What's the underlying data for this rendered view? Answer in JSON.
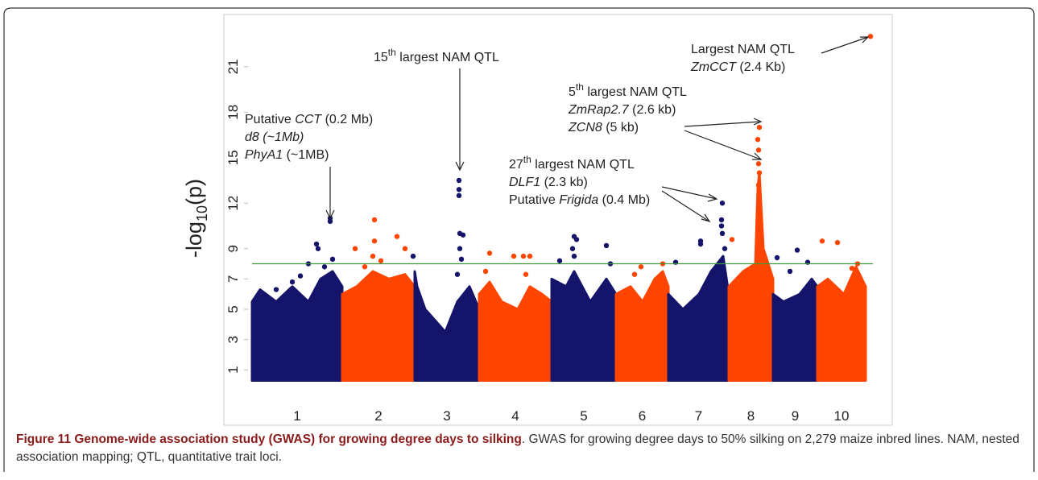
{
  "chart_data": {
    "type": "manhattan",
    "y_label_parts": [
      "-log",
      "10",
      "(p)"
    ],
    "xlim": [
      0,
      771
    ],
    "ylim": [
      -0.1,
      23.7
    ],
    "yticks": [
      1,
      3,
      5,
      7,
      9,
      12,
      15,
      18,
      21
    ],
    "threshold": 8,
    "threshold_color": "#3a9a3a",
    "mass_bottom": 0.3,
    "series": [
      {
        "name": "1",
        "color": "#14146b",
        "mass_x": [
          0,
          10,
          30,
          50,
          70,
          85,
          100,
          112
        ],
        "mass_top": [
          5.5,
          6.3,
          5.5,
          6.5,
          5.5,
          7,
          7.5,
          6.5
        ],
        "x": [
          80,
          82,
          70,
          50,
          97,
          97,
          100,
          90,
          60,
          30
        ],
        "values": [
          9.3,
          9.0,
          8.0,
          6.8,
          11.0,
          10.8,
          8.3,
          7.8,
          7.2,
          6.3
        ]
      },
      {
        "name": "2",
        "color": "#ff4500",
        "mass_x": [
          112,
          130,
          150,
          170,
          190,
          202
        ],
        "mass_top": [
          6,
          6.5,
          7.5,
          7,
          7.3,
          6.5
        ],
        "x": [
          128,
          152,
          152,
          150,
          180,
          190,
          140,
          160
        ],
        "values": [
          9.0,
          10.9,
          9.5,
          8.5,
          9.8,
          9.0,
          7.8,
          8.2
        ]
      },
      {
        "name": "3",
        "color": "#14146b",
        "mass_x": [
          202,
          205,
          215,
          240,
          255,
          270,
          282
        ],
        "mass_top": [
          7.5,
          6.5,
          5,
          3.5,
          5.5,
          6.5,
          5
        ],
        "x": [
          200,
          257,
          257,
          257,
          258,
          262,
          258,
          260,
          255
        ],
        "values": [
          8.5,
          13.5,
          12.9,
          12.5,
          10.0,
          9.9,
          9.0,
          8.3,
          7.3
        ]
      },
      {
        "name": "4",
        "color": "#ff4500",
        "mass_x": [
          282,
          295,
          310,
          330,
          345,
          360,
          372
        ],
        "mass_top": [
          6,
          6.8,
          5.5,
          5,
          6.5,
          6.0,
          5.5
        ],
        "x": [
          295,
          325,
          337,
          345,
          290,
          340
        ],
        "values": [
          8.7,
          8.5,
          8.5,
          8.5,
          7.5,
          7.3
        ]
      },
      {
        "name": "5",
        "color": "#14146b",
        "mass_x": [
          372,
          390,
          400,
          420,
          440,
          452
        ],
        "mass_top": [
          7,
          6.5,
          7.5,
          5.5,
          7,
          6
        ],
        "x": [
          400,
          403,
          398,
          382,
          440,
          445,
          400
        ],
        "values": [
          9.8,
          9.6,
          9.0,
          8.2,
          9.2,
          8.0,
          8.5
        ]
      },
      {
        "name": "6",
        "color": "#ff4500",
        "mass_x": [
          452,
          470,
          485,
          500,
          510,
          517
        ],
        "mass_top": [
          6,
          6.5,
          5.5,
          7,
          7.5,
          6.5
        ],
        "x": [
          483,
          510,
          475
        ],
        "values": [
          7.8,
          8.0,
          7.3
        ]
      },
      {
        "name": "7",
        "color": "#14146b",
        "mass_x": [
          517,
          535,
          555,
          570,
          585,
          592
        ],
        "mass_top": [
          6,
          5,
          6,
          7.5,
          8.5,
          6
        ],
        "x": [
          526,
          557,
          557,
          584,
          583,
          583,
          584,
          587
        ],
        "values": [
          8.1,
          9.5,
          9.3,
          12.0,
          10.9,
          10.5,
          10.0,
          9.0
        ]
      },
      {
        "name": "8",
        "color": "#ff4500",
        "mass_x": [
          592,
          610,
          625,
          628,
          630,
          635,
          647
        ],
        "mass_top": [
          6.5,
          7.5,
          8,
          13,
          14,
          9,
          7
        ],
        "x": [
          596,
          630,
          628,
          629,
          629,
          630,
          629,
          630,
          631
        ],
        "values": [
          9.6,
          17.0,
          16.2,
          15.5,
          14.6,
          14.0,
          13.2,
          12.5,
          11.5
        ]
      },
      {
        "name": "9",
        "color": "#14146b",
        "mass_x": [
          647,
          660,
          680,
          695,
          702
        ],
        "mass_top": [
          6,
          5.5,
          6,
          7,
          6.5
        ],
        "x": [
          652,
          677,
          690,
          668
        ],
        "values": [
          8.4,
          8.9,
          8.1,
          7.5
        ]
      },
      {
        "name": "10",
        "color": "#ff4500",
        "mass_x": [
          702,
          715,
          735,
          750,
          762
        ],
        "mass_top": [
          6.5,
          7,
          6,
          7.8,
          6.5
        ],
        "x": [
          708,
          727,
          768,
          752,
          745
        ],
        "values": [
          9.5,
          9.4,
          23.0,
          8.0,
          7.7
        ]
      }
    ],
    "annotations": [
      [
        [
          {
            "text": "Putative "
          },
          {
            "text": "CCT",
            "italic": true
          },
          {
            "text": " (0.2 Mb)"
          }
        ],
        [
          {
            "text": "d8 (~1Mb)",
            "italic": true
          }
        ],
        [
          {
            "text": "PhyA1",
            "italic": true
          },
          {
            "text": " (~1MB)"
          }
        ]
      ],
      [
        [
          {
            "text": "15"
          },
          {
            "text": "th",
            "sup": true
          },
          {
            "text": " largest NAM QTL"
          }
        ]
      ],
      [
        [
          {
            "text": "27"
          },
          {
            "text": "th",
            "sup": true
          },
          {
            "text": " largest NAM QTL"
          }
        ],
        [
          {
            "text": "DLF1",
            "italic": true
          },
          {
            "text": " (2.3 kb)"
          }
        ],
        [
          {
            "text": "Putative "
          },
          {
            "text": "Frigida",
            "italic": true
          },
          {
            "text": " (0.4 Mb)"
          }
        ]
      ],
      [
        [
          {
            "text": "5"
          },
          {
            "text": "th",
            "sup": true
          },
          {
            "text": " largest NAM QTL"
          }
        ],
        [
          {
            "text": "ZmRap2.7",
            "italic": true
          },
          {
            "text": " (2.6 kb)"
          }
        ],
        [
          {
            "text": "ZCN8",
            "italic": true
          },
          {
            "text": " (5 kb)"
          }
        ]
      ],
      [
        [
          {
            "text": "Largest NAM QTL"
          }
        ],
        [
          {
            "text": "ZmCCT",
            "italic": true
          },
          {
            "text": " (2.4 Kb)"
          }
        ]
      ]
    ]
  },
  "caption": {
    "bold": "Figure 11 Genome-wide association study (GWAS) for growing degree days to silking",
    "rest": ". GWAS for growing degree days to 50% silking on 2,279 maize inbred lines. NAM, nested association mapping; QTL, quantitative trait loci."
  }
}
